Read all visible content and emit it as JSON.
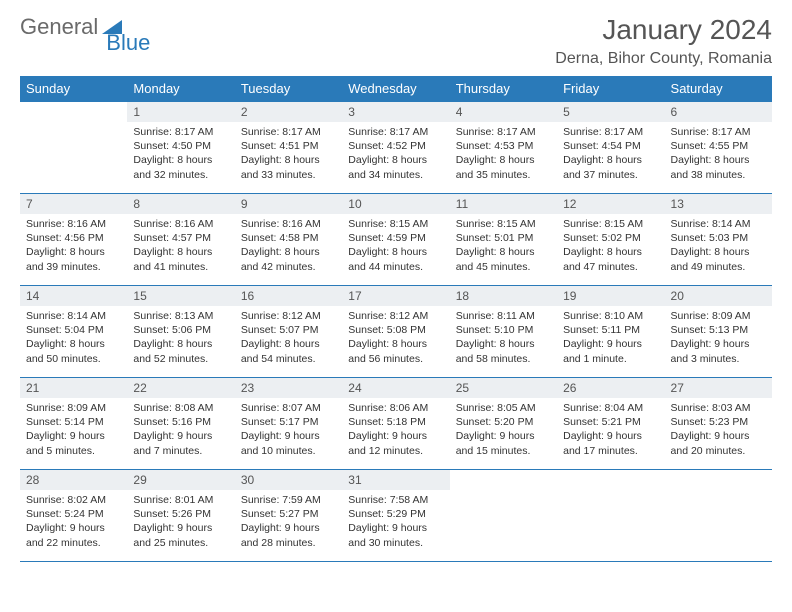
{
  "logo": {
    "part1": "General",
    "part2": "Blue"
  },
  "title": "January 2024",
  "location": "Derna, Bihor County, Romania",
  "header_bg": "#2a7ab9",
  "header_text": "#ffffff",
  "daynum_bg": "#eceff2",
  "border_color": "#2a7ab9",
  "daysOfWeek": [
    "Sunday",
    "Monday",
    "Tuesday",
    "Wednesday",
    "Thursday",
    "Friday",
    "Saturday"
  ],
  "weeks": [
    [
      {
        "n": "",
        "sr": "",
        "ss": "",
        "dl1": "",
        "dl2": ""
      },
      {
        "n": "1",
        "sr": "Sunrise: 8:17 AM",
        "ss": "Sunset: 4:50 PM",
        "dl1": "Daylight: 8 hours",
        "dl2": "and 32 minutes."
      },
      {
        "n": "2",
        "sr": "Sunrise: 8:17 AM",
        "ss": "Sunset: 4:51 PM",
        "dl1": "Daylight: 8 hours",
        "dl2": "and 33 minutes."
      },
      {
        "n": "3",
        "sr": "Sunrise: 8:17 AM",
        "ss": "Sunset: 4:52 PM",
        "dl1": "Daylight: 8 hours",
        "dl2": "and 34 minutes."
      },
      {
        "n": "4",
        "sr": "Sunrise: 8:17 AM",
        "ss": "Sunset: 4:53 PM",
        "dl1": "Daylight: 8 hours",
        "dl2": "and 35 minutes."
      },
      {
        "n": "5",
        "sr": "Sunrise: 8:17 AM",
        "ss": "Sunset: 4:54 PM",
        "dl1": "Daylight: 8 hours",
        "dl2": "and 37 minutes."
      },
      {
        "n": "6",
        "sr": "Sunrise: 8:17 AM",
        "ss": "Sunset: 4:55 PM",
        "dl1": "Daylight: 8 hours",
        "dl2": "and 38 minutes."
      }
    ],
    [
      {
        "n": "7",
        "sr": "Sunrise: 8:16 AM",
        "ss": "Sunset: 4:56 PM",
        "dl1": "Daylight: 8 hours",
        "dl2": "and 39 minutes."
      },
      {
        "n": "8",
        "sr": "Sunrise: 8:16 AM",
        "ss": "Sunset: 4:57 PM",
        "dl1": "Daylight: 8 hours",
        "dl2": "and 41 minutes."
      },
      {
        "n": "9",
        "sr": "Sunrise: 8:16 AM",
        "ss": "Sunset: 4:58 PM",
        "dl1": "Daylight: 8 hours",
        "dl2": "and 42 minutes."
      },
      {
        "n": "10",
        "sr": "Sunrise: 8:15 AM",
        "ss": "Sunset: 4:59 PM",
        "dl1": "Daylight: 8 hours",
        "dl2": "and 44 minutes."
      },
      {
        "n": "11",
        "sr": "Sunrise: 8:15 AM",
        "ss": "Sunset: 5:01 PM",
        "dl1": "Daylight: 8 hours",
        "dl2": "and 45 minutes."
      },
      {
        "n": "12",
        "sr": "Sunrise: 8:15 AM",
        "ss": "Sunset: 5:02 PM",
        "dl1": "Daylight: 8 hours",
        "dl2": "and 47 minutes."
      },
      {
        "n": "13",
        "sr": "Sunrise: 8:14 AM",
        "ss": "Sunset: 5:03 PM",
        "dl1": "Daylight: 8 hours",
        "dl2": "and 49 minutes."
      }
    ],
    [
      {
        "n": "14",
        "sr": "Sunrise: 8:14 AM",
        "ss": "Sunset: 5:04 PM",
        "dl1": "Daylight: 8 hours",
        "dl2": "and 50 minutes."
      },
      {
        "n": "15",
        "sr": "Sunrise: 8:13 AM",
        "ss": "Sunset: 5:06 PM",
        "dl1": "Daylight: 8 hours",
        "dl2": "and 52 minutes."
      },
      {
        "n": "16",
        "sr": "Sunrise: 8:12 AM",
        "ss": "Sunset: 5:07 PM",
        "dl1": "Daylight: 8 hours",
        "dl2": "and 54 minutes."
      },
      {
        "n": "17",
        "sr": "Sunrise: 8:12 AM",
        "ss": "Sunset: 5:08 PM",
        "dl1": "Daylight: 8 hours",
        "dl2": "and 56 minutes."
      },
      {
        "n": "18",
        "sr": "Sunrise: 8:11 AM",
        "ss": "Sunset: 5:10 PM",
        "dl1": "Daylight: 8 hours",
        "dl2": "and 58 minutes."
      },
      {
        "n": "19",
        "sr": "Sunrise: 8:10 AM",
        "ss": "Sunset: 5:11 PM",
        "dl1": "Daylight: 9 hours",
        "dl2": "and 1 minute."
      },
      {
        "n": "20",
        "sr": "Sunrise: 8:09 AM",
        "ss": "Sunset: 5:13 PM",
        "dl1": "Daylight: 9 hours",
        "dl2": "and 3 minutes."
      }
    ],
    [
      {
        "n": "21",
        "sr": "Sunrise: 8:09 AM",
        "ss": "Sunset: 5:14 PM",
        "dl1": "Daylight: 9 hours",
        "dl2": "and 5 minutes."
      },
      {
        "n": "22",
        "sr": "Sunrise: 8:08 AM",
        "ss": "Sunset: 5:16 PM",
        "dl1": "Daylight: 9 hours",
        "dl2": "and 7 minutes."
      },
      {
        "n": "23",
        "sr": "Sunrise: 8:07 AM",
        "ss": "Sunset: 5:17 PM",
        "dl1": "Daylight: 9 hours",
        "dl2": "and 10 minutes."
      },
      {
        "n": "24",
        "sr": "Sunrise: 8:06 AM",
        "ss": "Sunset: 5:18 PM",
        "dl1": "Daylight: 9 hours",
        "dl2": "and 12 minutes."
      },
      {
        "n": "25",
        "sr": "Sunrise: 8:05 AM",
        "ss": "Sunset: 5:20 PM",
        "dl1": "Daylight: 9 hours",
        "dl2": "and 15 minutes."
      },
      {
        "n": "26",
        "sr": "Sunrise: 8:04 AM",
        "ss": "Sunset: 5:21 PM",
        "dl1": "Daylight: 9 hours",
        "dl2": "and 17 minutes."
      },
      {
        "n": "27",
        "sr": "Sunrise: 8:03 AM",
        "ss": "Sunset: 5:23 PM",
        "dl1": "Daylight: 9 hours",
        "dl2": "and 20 minutes."
      }
    ],
    [
      {
        "n": "28",
        "sr": "Sunrise: 8:02 AM",
        "ss": "Sunset: 5:24 PM",
        "dl1": "Daylight: 9 hours",
        "dl2": "and 22 minutes."
      },
      {
        "n": "29",
        "sr": "Sunrise: 8:01 AM",
        "ss": "Sunset: 5:26 PM",
        "dl1": "Daylight: 9 hours",
        "dl2": "and 25 minutes."
      },
      {
        "n": "30",
        "sr": "Sunrise: 7:59 AM",
        "ss": "Sunset: 5:27 PM",
        "dl1": "Daylight: 9 hours",
        "dl2": "and 28 minutes."
      },
      {
        "n": "31",
        "sr": "Sunrise: 7:58 AM",
        "ss": "Sunset: 5:29 PM",
        "dl1": "Daylight: 9 hours",
        "dl2": "and 30 minutes."
      },
      {
        "n": "",
        "sr": "",
        "ss": "",
        "dl1": "",
        "dl2": ""
      },
      {
        "n": "",
        "sr": "",
        "ss": "",
        "dl1": "",
        "dl2": ""
      },
      {
        "n": "",
        "sr": "",
        "ss": "",
        "dl1": "",
        "dl2": ""
      }
    ]
  ]
}
